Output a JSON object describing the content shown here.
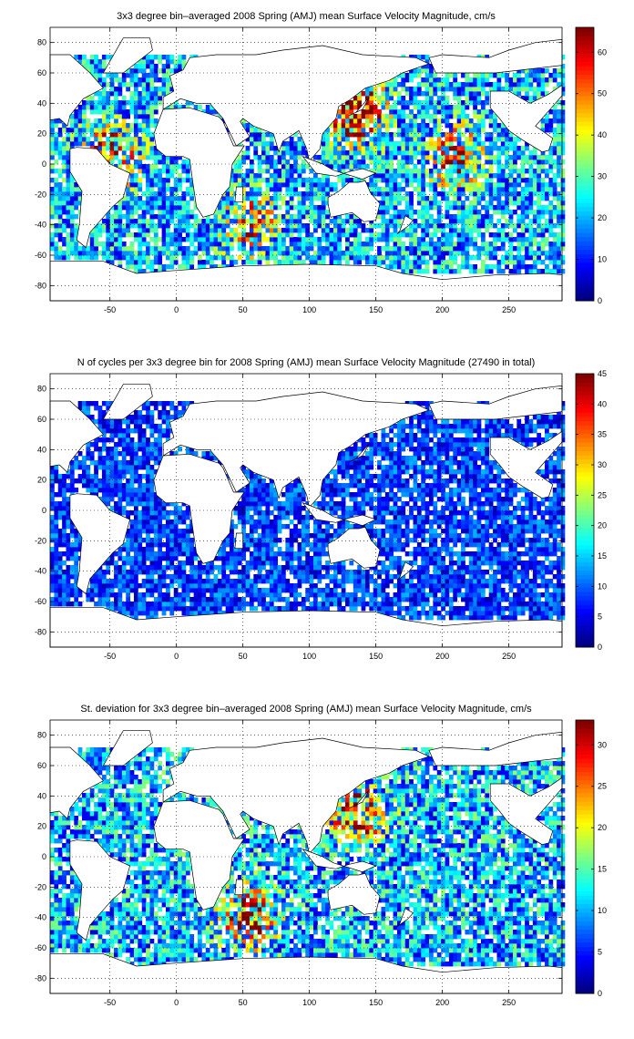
{
  "chart_data": [
    {
      "type": "heatmap",
      "title": "3x3 degree bin–averaged 2008 Spring (AMJ) mean Surface Velocity Magnitude, cm/s",
      "xlim": [
        -95,
        290
      ],
      "ylim": [
        -90,
        90
      ],
      "x_ticks": [
        -50,
        0,
        50,
        100,
        150,
        200,
        250
      ],
      "y_ticks": [
        80,
        60,
        40,
        20,
        0,
        -20,
        -40,
        -60,
        -80
      ],
      "grid": true,
      "bin_size_deg": 3,
      "colormap": "jet",
      "colorbar": {
        "min": 0,
        "max": 66,
        "ticks": [
          0,
          10,
          20,
          30,
          40,
          50,
          60
        ]
      },
      "typical_value": 20,
      "high_value_regions": [
        {
          "x": 135,
          "y": 35,
          "value": 60
        },
        {
          "x": 210,
          "y": 5,
          "value": 45
        },
        {
          "x": -50,
          "y": 5,
          "value": 50
        },
        {
          "x": 55,
          "y": -40,
          "value": 45
        }
      ]
    },
    {
      "type": "heatmap",
      "title": "N of cycles per 3x3 degree bin for 2008 Spring (AMJ) mean Surface Velocity Magnitude (27490 in total)",
      "xlim": [
        -95,
        290
      ],
      "ylim": [
        -90,
        90
      ],
      "x_ticks": [
        -50,
        0,
        50,
        100,
        150,
        200,
        250
      ],
      "y_ticks": [
        80,
        60,
        40,
        20,
        0,
        -20,
        -40,
        -60,
        -80
      ],
      "grid": true,
      "bin_size_deg": 3,
      "colormap": "jet",
      "colorbar": {
        "min": 0,
        "max": 45,
        "ticks": [
          0,
          5,
          10,
          15,
          20,
          25,
          30,
          35,
          40,
          45
        ]
      },
      "typical_value": 8,
      "total_count": 27490
    },
    {
      "type": "heatmap",
      "title": "St. deviation for 3x3 degree bin–averaged 2008 Spring (AMJ) mean Surface Velocity Magnitude, cm/s",
      "xlim": [
        -95,
        290
      ],
      "ylim": [
        -90,
        90
      ],
      "x_ticks": [
        -50,
        0,
        50,
        100,
        150,
        200,
        250
      ],
      "y_ticks": [
        80,
        60,
        40,
        20,
        0,
        -20,
        -40,
        -60,
        -80
      ],
      "grid": true,
      "bin_size_deg": 3,
      "colormap": "jet",
      "colorbar": {
        "min": 0,
        "max": 33,
        "ticks": [
          0,
          5,
          10,
          15,
          20,
          25,
          30
        ]
      },
      "typical_value": 10,
      "high_value_regions": [
        {
          "x": 135,
          "y": 30,
          "value": 28
        },
        {
          "x": 55,
          "y": -40,
          "value": 25
        }
      ]
    }
  ]
}
